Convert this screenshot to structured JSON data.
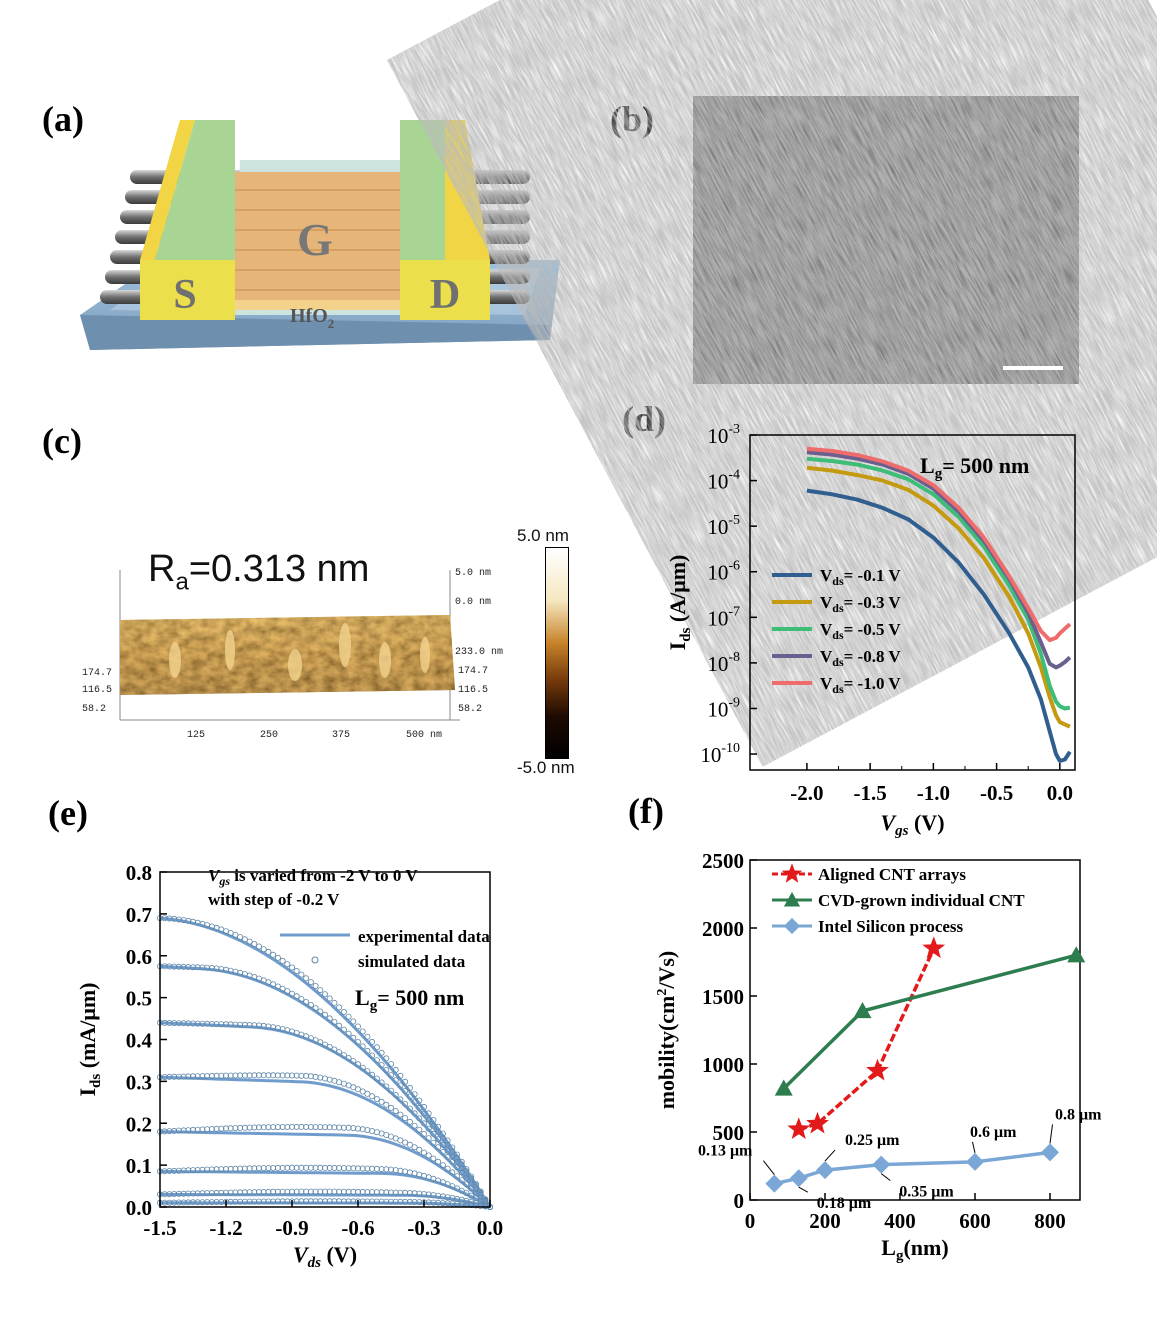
{
  "panels": {
    "a": {
      "label": "(a)",
      "gate": "G",
      "source": "S",
      "drain": "D",
      "dielectric": "HfO",
      "dielectric_sub": "2"
    },
    "b": {
      "label": "(b)"
    },
    "c": {
      "label": "(c)",
      "ra_prefix": "R",
      "ra_sub": "a",
      "ra_value": "=0.313 nm",
      "colorbar_top": "5.0 nm",
      "colorbar_bottom": "-5.0 nm",
      "afm_right_labels": [
        "5.0 nm",
        "0.0 nm",
        "233.0 nm",
        "174.7",
        "116.5",
        "58.2"
      ],
      "afm_left_labels": [
        "174.7",
        "116.5",
        "58.2"
      ],
      "afm_bottom_labels": [
        "125",
        "250",
        "375",
        "500 nm"
      ]
    },
    "d": {
      "label": "(d)",
      "annotation": "L",
      "annotation_sub": "g",
      "annotation_value": "= 500 nm"
    },
    "e": {
      "label": "(e)",
      "note_line1_var": "V",
      "note_line1_sub": "gs",
      "note_line1_rest": " is varied from -2 V to 0 V",
      "note_line2": "with step of -0.2 V",
      "legend_exp": "experimental data",
      "legend_sim": "simulated data",
      "annotation": "L",
      "annotation_sub": "g",
      "annotation_value": "= 500 nm"
    },
    "f": {
      "label": "(f)"
    }
  },
  "colors": {
    "blue_series": "#2f5e8f",
    "gold_series": "#c49a10",
    "green_series": "#3dbd78",
    "purple_series": "#6a5f8f",
    "pink_series": "#ef6c6c",
    "steel_blue": "#6f9ccc",
    "red_star": "#e31a1c",
    "dark_green": "#2e7d4f",
    "light_blue": "#7aa7d6"
  },
  "chart_data": [
    {
      "id": "d",
      "type": "line",
      "yscale": "log",
      "xlabel": "V",
      "xlabel_sub": "gs",
      "xlabel_unit": " (V)",
      "ylabel": "I",
      "ylabel_sub": "ds",
      "ylabel_unit": " (A/μm)",
      "xlim": [
        -2.45,
        0.12
      ],
      "ylim_exp": [
        -10.35,
        -3
      ],
      "x_ticks": [
        -2.0,
        -1.5,
        -1.0,
        -0.5,
        0.0
      ],
      "x_tick_labels": [
        "-2.0",
        "-1.5",
        "-1.0",
        "-0.5",
        "0.0"
      ],
      "y_tick_exps": [
        -3,
        -4,
        -5,
        -6,
        -7,
        -8,
        -9,
        -10
      ],
      "y_tick_base": "10",
      "series": [
        {
          "name": "V",
          "name_sub": "ds",
          "name_rest": "= -0.1 V",
          "color": "#2f5e8f",
          "points": [
            [
              -2.0,
              -4.22
            ],
            [
              -1.8,
              -4.3
            ],
            [
              -1.6,
              -4.42
            ],
            [
              -1.4,
              -4.6
            ],
            [
              -1.2,
              -4.85
            ],
            [
              -1.0,
              -5.25
            ],
            [
              -0.8,
              -5.8
            ],
            [
              -0.6,
              -6.5
            ],
            [
              -0.4,
              -7.35
            ],
            [
              -0.25,
              -8.1
            ],
            [
              -0.15,
              -8.8
            ],
            [
              -0.08,
              -9.5
            ],
            [
              -0.03,
              -10.0
            ],
            [
              0.0,
              -10.15
            ],
            [
              0.04,
              -10.12
            ],
            [
              0.08,
              -9.95
            ]
          ]
        },
        {
          "name": "V",
          "name_sub": "ds",
          "name_rest": "= -0.3 V",
          "color": "#c49a10",
          "points": [
            [
              -2.0,
              -3.72
            ],
            [
              -1.8,
              -3.78
            ],
            [
              -1.6,
              -3.88
            ],
            [
              -1.4,
              -4.0
            ],
            [
              -1.2,
              -4.2
            ],
            [
              -1.0,
              -4.55
            ],
            [
              -0.8,
              -5.05
            ],
            [
              -0.6,
              -5.7
            ],
            [
              -0.4,
              -6.55
            ],
            [
              -0.25,
              -7.35
            ],
            [
              -0.15,
              -8.1
            ],
            [
              -0.08,
              -8.75
            ],
            [
              -0.03,
              -9.15
            ],
            [
              0.0,
              -9.3
            ],
            [
              0.04,
              -9.35
            ],
            [
              0.08,
              -9.4
            ]
          ]
        },
        {
          "name": "V",
          "name_sub": "ds",
          "name_rest": "= -0.5 V",
          "color": "#3dbd78",
          "points": [
            [
              -2.0,
              -3.52
            ],
            [
              -1.8,
              -3.57
            ],
            [
              -1.6,
              -3.65
            ],
            [
              -1.4,
              -3.78
            ],
            [
              -1.2,
              -3.97
            ],
            [
              -1.0,
              -4.3
            ],
            [
              -0.8,
              -4.8
            ],
            [
              -0.6,
              -5.45
            ],
            [
              -0.4,
              -6.3
            ],
            [
              -0.25,
              -7.05
            ],
            [
              -0.15,
              -7.8
            ],
            [
              -0.08,
              -8.5
            ],
            [
              -0.03,
              -8.85
            ],
            [
              0.0,
              -8.95
            ],
            [
              0.04,
              -9.0
            ],
            [
              0.08,
              -8.98
            ]
          ]
        },
        {
          "name": "V",
          "name_sub": "ds",
          "name_rest": "= -0.8 V",
          "color": "#6a5f8f",
          "points": [
            [
              -2.0,
              -3.38
            ],
            [
              -1.8,
              -3.43
            ],
            [
              -1.6,
              -3.52
            ],
            [
              -1.4,
              -3.65
            ],
            [
              -1.2,
              -3.85
            ],
            [
              -1.0,
              -4.18
            ],
            [
              -0.8,
              -4.68
            ],
            [
              -0.6,
              -5.32
            ],
            [
              -0.4,
              -6.15
            ],
            [
              -0.25,
              -6.9
            ],
            [
              -0.15,
              -7.55
            ],
            [
              -0.08,
              -8.02
            ],
            [
              -0.03,
              -8.1
            ],
            [
              0.0,
              -8.06
            ],
            [
              0.04,
              -7.98
            ],
            [
              0.08,
              -7.88
            ]
          ]
        },
        {
          "name": "V",
          "name_sub": "ds",
          "name_rest": "= -1.0 V",
          "color": "#ef6c6c",
          "points": [
            [
              -2.0,
              -3.3
            ],
            [
              -1.8,
              -3.35
            ],
            [
              -1.6,
              -3.44
            ],
            [
              -1.4,
              -3.58
            ],
            [
              -1.2,
              -3.78
            ],
            [
              -1.0,
              -4.1
            ],
            [
              -0.8,
              -4.6
            ],
            [
              -0.6,
              -5.25
            ],
            [
              -0.4,
              -6.1
            ],
            [
              -0.25,
              -6.8
            ],
            [
              -0.15,
              -7.3
            ],
            [
              -0.08,
              -7.5
            ],
            [
              -0.03,
              -7.45
            ],
            [
              0.0,
              -7.35
            ],
            [
              0.04,
              -7.25
            ],
            [
              0.08,
              -7.15
            ]
          ]
        }
      ]
    },
    {
      "id": "e",
      "type": "line",
      "xlabel": "V",
      "xlabel_sub": "ds",
      "xlabel_unit": " (V)",
      "ylabel": "I",
      "ylabel_sub": "ds",
      "ylabel_unit": " (mA/μm)",
      "xlim": [
        -1.5,
        0.0
      ],
      "ylim": [
        0.0,
        0.8
      ],
      "x_ticks": [
        -1.5,
        -1.2,
        -0.9,
        -0.6,
        -0.3,
        0.0
      ],
      "x_tick_labels": [
        "-1.5",
        "-1.2",
        "-0.9",
        "-0.6",
        "-0.3",
        "0.0"
      ],
      "y_ticks": [
        0.0,
        0.1,
        0.2,
        0.3,
        0.4,
        0.5,
        0.6,
        0.7,
        0.8
      ],
      "y_tick_labels": [
        "0.0",
        "0.1",
        "0.2",
        "0.3",
        "0.4",
        "0.5",
        "0.6",
        "0.7",
        "0.8"
      ],
      "saturation_currents": [
        0.69,
        0.575,
        0.44,
        0.31,
        0.18,
        0.085,
        0.03,
        0.01
      ],
      "simulated_offset": [
        0.012,
        0.008,
        0.006,
        0.015,
        0.018,
        0.012,
        0.008,
        0.004
      ],
      "series_color": "#6f9ccc"
    },
    {
      "id": "f",
      "type": "scatter",
      "xlabel": "L",
      "xlabel_sub": "g",
      "xlabel_unit": "(nm)",
      "ylabel": "mobility(cm",
      "ylabel_sup": "2",
      "ylabel_unit": "/Vs)",
      "xlim": [
        0,
        880
      ],
      "ylim": [
        0,
        2500
      ],
      "x_ticks": [
        0,
        200,
        400,
        600,
        800
      ],
      "x_tick_labels": [
        "0",
        "200",
        "400",
        "600",
        "800"
      ],
      "y_ticks": [
        0,
        500,
        1000,
        1500,
        2000,
        2500
      ],
      "y_tick_labels": [
        "0",
        "500",
        "1000",
        "1500",
        "2000",
        "2500"
      ],
      "series": [
        {
          "name": "Aligned CNT arrays",
          "marker": "star",
          "color": "#e31a1c",
          "dashed": true,
          "points": [
            [
              130,
              520
            ],
            [
              180,
              560
            ],
            [
              340,
              950
            ],
            [
              490,
              1850
            ]
          ]
        },
        {
          "name": "CVD-grown individual CNT",
          "marker": "triangle",
          "color": "#2e7d4f",
          "dashed": false,
          "points": [
            [
              90,
              820
            ],
            [
              300,
              1390
            ],
            [
              870,
              1800
            ]
          ]
        },
        {
          "name": "Intel Silicon process",
          "marker": "diamond",
          "color": "#7aa7d6",
          "dashed": false,
          "points": [
            [
              65,
              120
            ],
            [
              130,
              160
            ],
            [
              200,
              220
            ],
            [
              350,
              260
            ],
            [
              600,
              280
            ],
            [
              800,
              350
            ]
          ]
        }
      ],
      "point_labels": [
        "0.13 μm",
        "0.18 μm",
        "0.25 μm",
        "0.35 μm",
        "0.6 μm",
        "0.8 μm"
      ]
    }
  ]
}
